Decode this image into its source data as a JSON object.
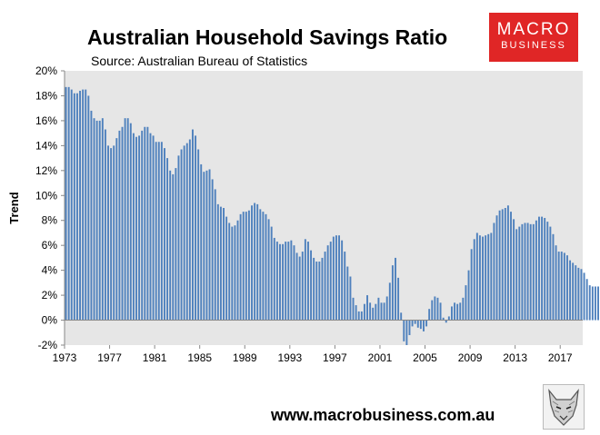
{
  "header": {
    "title": "Australian Household Savings Ratio",
    "subtitle": "Source: Australian Bureau of Statistics"
  },
  "logo": {
    "line1": "MACRO",
    "line2": "BUSINESS",
    "color": "#e02626"
  },
  "footer": {
    "url": "www.macrobusiness.com.au"
  },
  "chart_data": {
    "type": "bar",
    "title": "Australian Household Savings Ratio",
    "subtitle": "Source: Australian Bureau of Statistics",
    "xlabel": "",
    "ylabel": "Trend",
    "ylim": [
      -2,
      20
    ],
    "xlim": [
      1973,
      2019
    ],
    "grid": false,
    "plot_background": "#e6e6e6",
    "bar_color": "#4f81bd",
    "y_ticks": [
      "-2%",
      "0%",
      "2%",
      "4%",
      "6%",
      "8%",
      "10%",
      "12%",
      "14%",
      "16%",
      "18%",
      "20%"
    ],
    "x_ticks": [
      "1973",
      "1977",
      "1981",
      "1985",
      "1989",
      "1993",
      "1997",
      "2001",
      "2005",
      "2009",
      "2013",
      "2017"
    ],
    "quarterly_values": [
      18.7,
      18.7,
      18.5,
      18.2,
      18.2,
      18.4,
      18.5,
      18.5,
      18.0,
      16.8,
      16.2,
      16.0,
      16.0,
      16.2,
      15.3,
      14.0,
      13.8,
      14.0,
      14.6,
      15.2,
      15.5,
      16.2,
      16.2,
      15.8,
      15.0,
      14.7,
      14.8,
      15.2,
      15.5,
      15.5,
      15.0,
      14.8,
      14.3,
      14.3,
      14.3,
      13.8,
      13.0,
      12.0,
      11.7,
      12.2,
      13.2,
      13.7,
      14.0,
      14.2,
      14.5,
      15.3,
      14.8,
      13.7,
      12.5,
      11.9,
      12.0,
      12.1,
      11.3,
      10.5,
      9.3,
      9.1,
      9.0,
      8.3,
      7.8,
      7.5,
      7.6,
      8.0,
      8.5,
      8.7,
      8.7,
      8.8,
      9.2,
      9.4,
      9.3,
      8.9,
      8.7,
      8.5,
      8.1,
      7.5,
      6.6,
      6.3,
      6.1,
      6.1,
      6.3,
      6.3,
      6.4,
      6.0,
      5.4,
      5.1,
      5.5,
      6.5,
      6.3,
      5.6,
      5.0,
      4.7,
      4.7,
      5.0,
      5.5,
      6.0,
      6.3,
      6.7,
      6.8,
      6.8,
      6.4,
      5.5,
      4.3,
      3.5,
      1.8,
      1.2,
      0.7,
      0.7,
      1.3,
      2.0,
      1.4,
      1.0,
      1.3,
      1.8,
      1.4,
      1.4,
      1.9,
      3.0,
      4.4,
      5.0,
      3.4,
      0.6,
      -1.7,
      -2.0,
      -1.2,
      -0.5,
      -0.3,
      -0.6,
      -0.7,
      -0.9,
      -0.5,
      0.9,
      1.6,
      1.9,
      1.8,
      1.4,
      0.2,
      -0.2,
      0.3,
      1.1,
      1.4,
      1.3,
      1.4,
      1.8,
      2.8,
      4.0,
      5.7,
      6.5,
      7.0,
      6.8,
      6.7,
      6.8,
      6.9,
      7.0,
      7.8,
      8.4,
      8.8,
      8.9,
      9.0,
      9.2,
      8.7,
      8.1,
      7.3,
      7.5,
      7.7,
      7.8,
      7.8,
      7.7,
      7.7,
      8.0,
      8.3,
      8.3,
      8.2,
      7.9,
      7.5,
      6.9,
      6.0,
      5.5,
      5.5,
      5.4,
      5.2,
      4.8,
      4.6,
      4.4,
      4.2,
      4.1,
      3.8,
      3.3,
      2.8,
      2.7,
      2.7,
      2.7
    ]
  }
}
